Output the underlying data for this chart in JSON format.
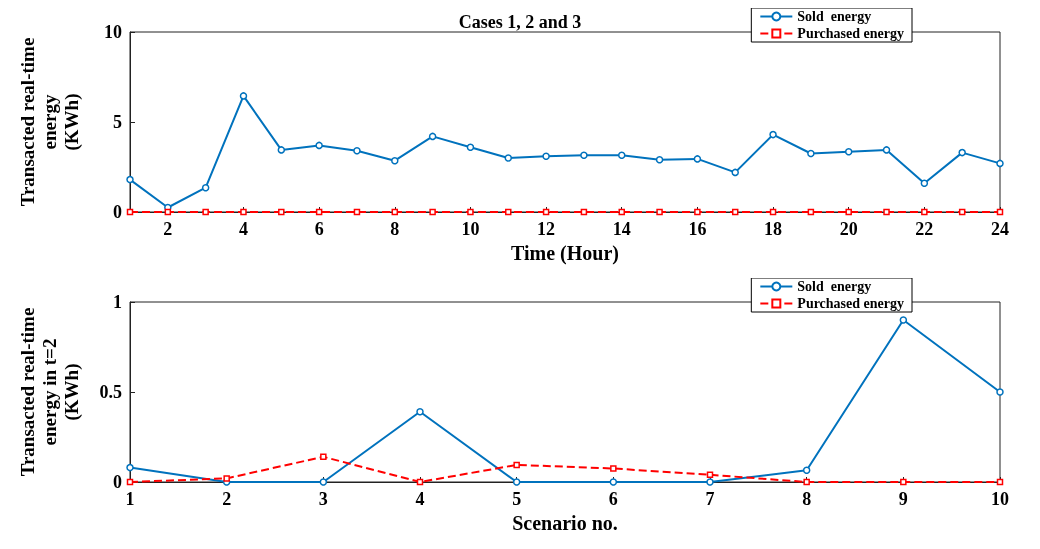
{
  "chart_data": [
    {
      "type": "line",
      "title": "Cases 1, 2 and 3",
      "xlabel": "Time (Hour)",
      "ylabel": "Transacted real-time\nenergy\n(KWh)",
      "x": [
        1,
        2,
        3,
        4,
        5,
        6,
        7,
        8,
        9,
        10,
        11,
        12,
        13,
        14,
        15,
        16,
        17,
        18,
        19,
        20,
        21,
        22,
        23,
        24
      ],
      "xlim": [
        1,
        24
      ],
      "xticks": [
        2,
        4,
        6,
        8,
        10,
        12,
        14,
        16,
        18,
        20,
        22,
        24
      ],
      "ylim": [
        0,
        10
      ],
      "yticks": [
        0,
        5,
        10
      ],
      "grid": false,
      "legend": "top right",
      "series": [
        {
          "name": "Sold  energy",
          "color": "#0072bd",
          "marker": "circle",
          "line_style": "solid",
          "values": [
            1.8,
            0.25,
            1.35,
            6.45,
            3.45,
            3.7,
            3.4,
            2.85,
            4.2,
            3.6,
            3.0,
            3.1,
            3.15,
            3.15,
            2.9,
            2.95,
            2.2,
            4.3,
            3.25,
            3.35,
            3.45,
            1.6,
            3.3,
            2.7
          ]
        },
        {
          "name": "Purchased energy",
          "color": "#ff0000",
          "marker": "square",
          "line_style": "dashed",
          "values": [
            0,
            0,
            0,
            0,
            0,
            0,
            0,
            0,
            0,
            0,
            0,
            0,
            0,
            0,
            0,
            0,
            0,
            0,
            0,
            0,
            0,
            0,
            0,
            0
          ]
        }
      ]
    },
    {
      "type": "line",
      "xlabel": "Scenario no.",
      "ylabel": "Transacted real-time\nenergy in t=2\n(KWh)",
      "x": [
        1,
        2,
        3,
        4,
        5,
        6,
        7,
        8,
        9,
        10
      ],
      "xlim": [
        1,
        10
      ],
      "xticks": [
        1,
        2,
        3,
        4,
        5,
        6,
        7,
        8,
        9,
        10
      ],
      "ylim": [
        0,
        1
      ],
      "yticks": [
        0,
        0.5,
        1
      ],
      "grid": false,
      "legend": "top right",
      "series": [
        {
          "name": "Sold  energy",
          "color": "#0072bd",
          "marker": "circle",
          "line_style": "solid",
          "values": [
            0.08,
            0,
            0,
            0.39,
            0,
            0,
            0,
            0.065,
            0.9,
            0.5
          ]
        },
        {
          "name": "Purchased energy",
          "color": "#ff0000",
          "marker": "square",
          "line_style": "dashed",
          "values": [
            0,
            0.02,
            0.14,
            0,
            0.095,
            0.075,
            0.04,
            0,
            0,
            0
          ]
        }
      ]
    }
  ]
}
